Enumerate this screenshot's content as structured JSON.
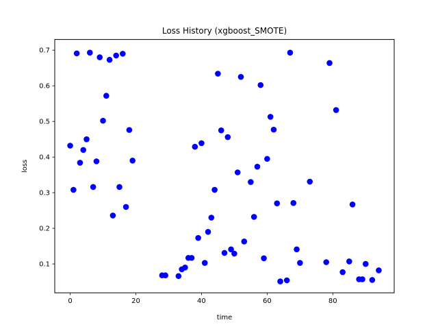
{
  "chart_data": {
    "type": "scatter",
    "title": "Loss History (xgboost_SMOTE)",
    "xlabel": "time",
    "ylabel": "loss",
    "xlim": [
      -4.7,
      98.7
    ],
    "ylim": [
      0.019,
      0.73
    ],
    "xticks": [
      0,
      20,
      40,
      60,
      80
    ],
    "yticks": [
      0.1,
      0.2,
      0.3,
      0.4,
      0.5,
      0.6,
      0.7
    ],
    "xtick_labels": [
      "0",
      "20",
      "40",
      "60",
      "80"
    ],
    "ytick_labels": [
      "0.1",
      "0.2",
      "0.3",
      "0.4",
      "0.5",
      "0.6",
      "0.7"
    ],
    "grid": false,
    "marker_color": "#0000ff",
    "series": [
      {
        "points": [
          [
            0,
            0.432
          ],
          [
            1,
            0.308
          ],
          [
            2,
            0.691
          ],
          [
            3,
            0.384
          ],
          [
            4,
            0.42
          ],
          [
            5,
            0.45
          ],
          [
            6,
            0.693
          ],
          [
            7,
            0.316
          ],
          [
            8,
            0.388
          ],
          [
            9,
            0.68
          ],
          [
            10,
            0.502
          ],
          [
            11,
            0.572
          ],
          [
            12,
            0.673
          ],
          [
            13,
            0.236
          ],
          [
            14,
            0.685
          ],
          [
            15,
            0.316
          ],
          [
            16,
            0.69
          ],
          [
            17,
            0.26
          ],
          [
            18,
            0.476
          ],
          [
            19,
            0.39
          ],
          [
            28,
            0.068
          ],
          [
            29,
            0.068
          ],
          [
            33,
            0.066
          ],
          [
            34,
            0.085
          ],
          [
            35,
            0.09
          ],
          [
            36,
            0.117
          ],
          [
            37,
            0.117
          ],
          [
            38,
            0.429
          ],
          [
            39,
            0.173
          ],
          [
            40,
            0.439
          ],
          [
            41,
            0.103
          ],
          [
            42,
            0.19
          ],
          [
            43,
            0.23
          ],
          [
            44,
            0.308
          ],
          [
            45,
            0.634
          ],
          [
            46,
            0.475
          ],
          [
            47,
            0.131
          ],
          [
            48,
            0.456
          ],
          [
            49,
            0.141
          ],
          [
            50,
            0.129
          ],
          [
            51,
            0.357
          ],
          [
            52,
            0.625
          ],
          [
            53,
            0.163
          ],
          [
            55,
            0.33
          ],
          [
            56,
            0.232
          ],
          [
            57,
            0.373
          ],
          [
            58,
            0.602
          ],
          [
            59,
            0.116
          ],
          [
            60,
            0.395
          ],
          [
            61,
            0.513
          ],
          [
            62,
            0.477
          ],
          [
            63,
            0.27
          ],
          [
            64,
            0.051
          ],
          [
            66,
            0.054
          ],
          [
            67,
            0.693
          ],
          [
            68,
            0.271
          ],
          [
            69,
            0.141
          ],
          [
            70,
            0.103
          ],
          [
            73,
            0.331
          ],
          [
            78,
            0.105
          ],
          [
            79,
            0.664
          ],
          [
            81,
            0.532
          ],
          [
            83,
            0.077
          ],
          [
            85,
            0.107
          ],
          [
            86,
            0.267
          ],
          [
            88,
            0.057
          ],
          [
            89,
            0.057
          ],
          [
            90,
            0.1
          ],
          [
            92,
            0.055
          ],
          [
            94,
            0.082
          ]
        ]
      }
    ]
  }
}
